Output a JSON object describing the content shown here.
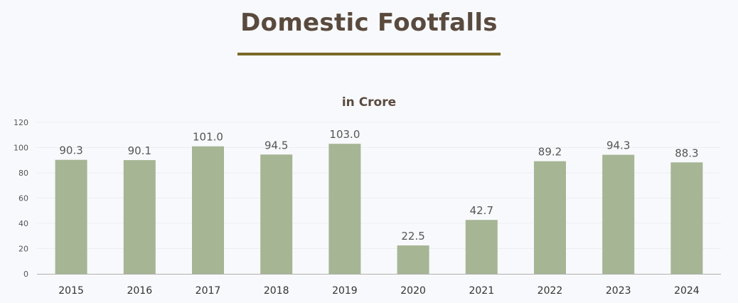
{
  "header": {
    "title": "Domestic Footfalls"
  },
  "chart_data": {
    "type": "bar",
    "title": "Domestic Footfalls",
    "subtitle": "in Crore",
    "xlabel": "",
    "ylabel": "",
    "categories": [
      "2015",
      "2016",
      "2017",
      "2018",
      "2019",
      "2020",
      "2021",
      "2022",
      "2023",
      "2024"
    ],
    "values": [
      90.3,
      90.1,
      101.0,
      94.5,
      103.0,
      22.5,
      42.7,
      89.2,
      94.3,
      88.3
    ],
    "data_labels": [
      "90.3",
      "90.1",
      "101.0",
      "94.5",
      "103.0",
      "22.5",
      "42.7",
      "89.2",
      "94.3",
      "88.3"
    ],
    "yticks": [
      "0",
      "20",
      "40",
      "60",
      "80",
      "100",
      "120"
    ],
    "ylim": [
      0,
      120
    ],
    "bar_color": "#a6b594",
    "grid": true
  }
}
